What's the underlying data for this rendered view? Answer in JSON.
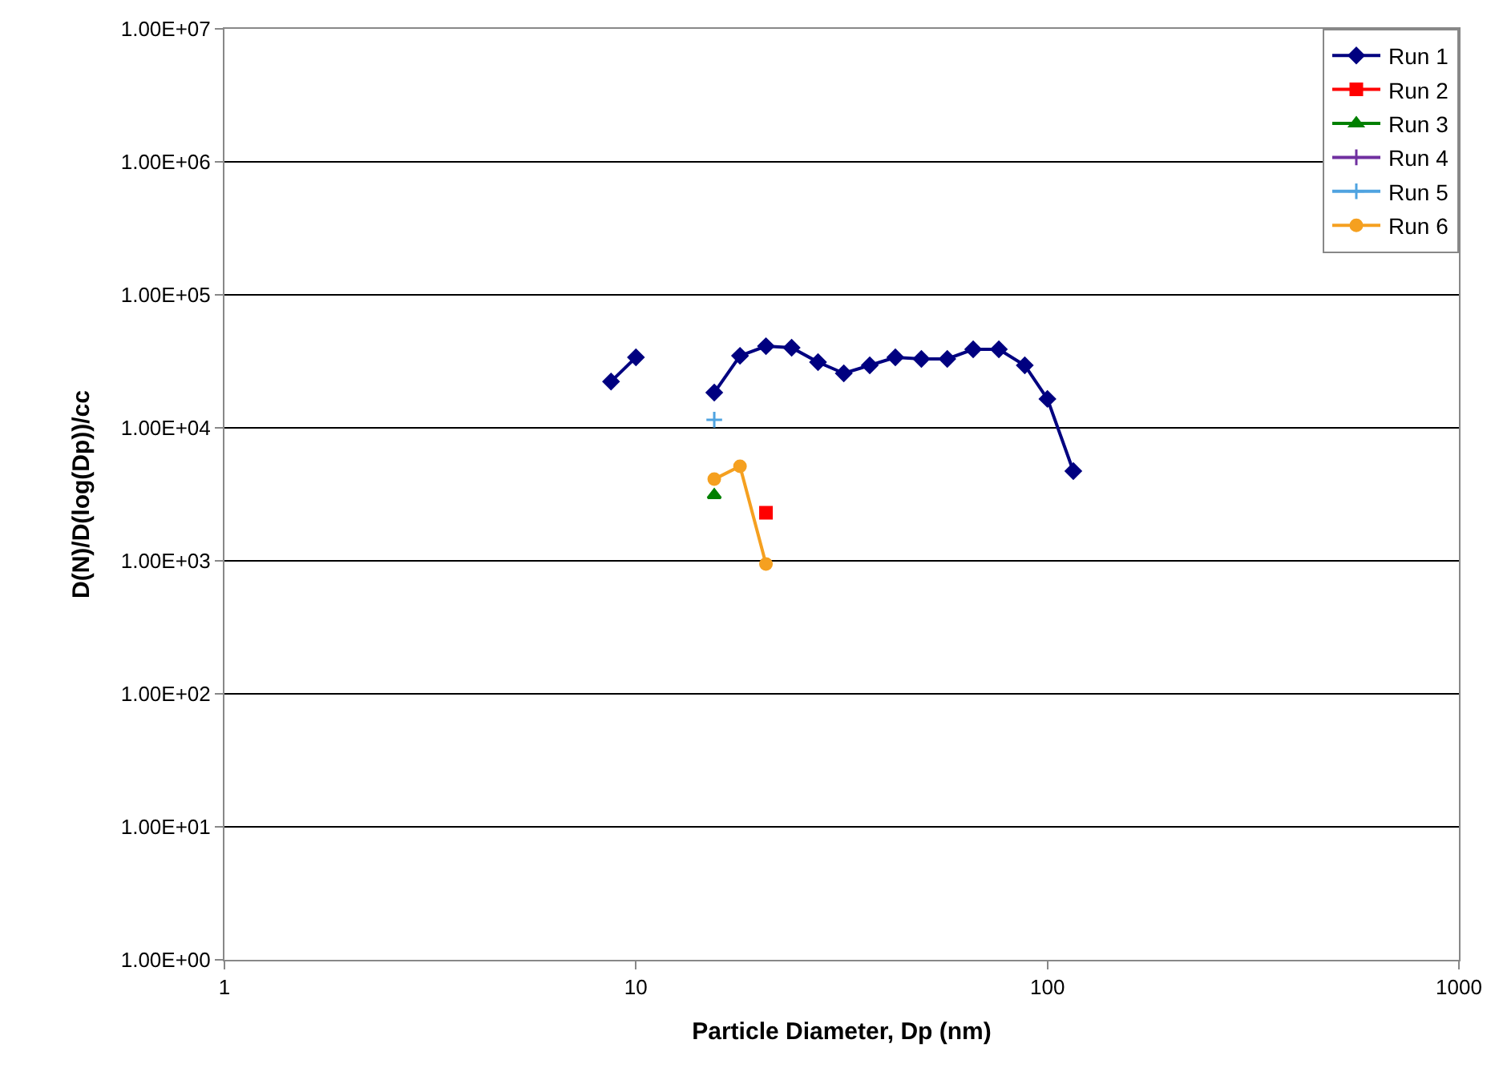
{
  "chart_data": {
    "type": "line",
    "xlabel": "Particle Diameter, Dp (nm)",
    "ylabel": "D(N)/D(log(Dp))/cc",
    "log": "xy",
    "grid": "y",
    "legend": "top right",
    "line_style": "solid",
    "xlim": [
      1,
      1000
    ],
    "xticks": [
      1,
      10,
      100,
      1000
    ],
    "ylim": [
      1,
      10000000
    ],
    "yticks": [
      {
        "value": 1,
        "label": "1.00E+00"
      },
      {
        "value": 10,
        "label": "1.00E+01"
      },
      {
        "value": 100,
        "label": "1.00E+02"
      },
      {
        "value": 1000,
        "label": "1.00E+03"
      },
      {
        "value": 10000,
        "label": "1.00E+04"
      },
      {
        "value": 100000,
        "label": "1.00E+05"
      },
      {
        "value": 1000000,
        "label": "1.00E+06"
      },
      {
        "value": 10000000,
        "label": "1.00E+07"
      }
    ],
    "series": [
      {
        "name": "Run 1",
        "color": "#000080",
        "marker": "diamond",
        "x": [
          8.7,
          10,
          12.5,
          15.5,
          17.9,
          20.7,
          23.9,
          27.7,
          32,
          37,
          42.7,
          49.4,
          57.1,
          66,
          76.2,
          88.1,
          100,
          115.6
        ],
        "values": [
          22300,
          33900,
          null,
          18400,
          34800,
          41100,
          40000,
          31200,
          25700,
          29500,
          33900,
          33000,
          33000,
          38900,
          38900,
          29500,
          16500,
          4730
        ]
      },
      {
        "name": "Run 2",
        "color": "#ff0000",
        "marker": "square",
        "x": [
          20.7
        ],
        "values": [
          2300
        ]
      },
      {
        "name": "Run 3",
        "color": "#008000",
        "marker": "triangle",
        "x": [
          15.5
        ],
        "values": [
          3120
        ]
      },
      {
        "name": "Run 4",
        "color": "#7030a0",
        "marker": "cross"
      },
      {
        "name": "Run 5",
        "color": "#4fa3e0",
        "marker": "cross",
        "x": [
          15.5
        ],
        "values": [
          11500
        ]
      },
      {
        "name": "Run 6",
        "color": "#f5a020",
        "marker": "circle",
        "x": [
          15.5,
          17.9,
          20.7
        ],
        "values": [
          4110,
          5140,
          946
        ]
      }
    ]
  }
}
